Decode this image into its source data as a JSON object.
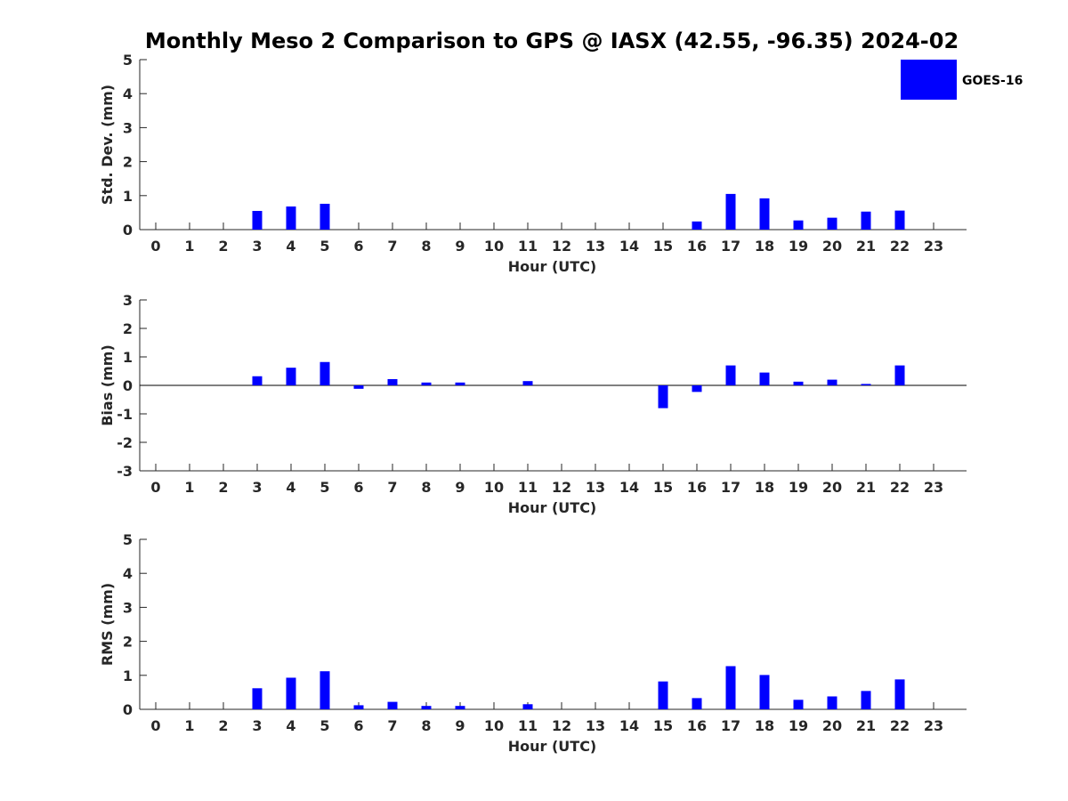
{
  "figure": {
    "title": "Monthly Meso 2 Comparison to GPS @ IASX (42.55, -96.35) 2024-02",
    "legend": {
      "label": "GOES-16",
      "color": "#0000ff",
      "placement": "top-right"
    }
  },
  "chart_data": [
    {
      "type": "bar",
      "xlabel": "Hour (UTC)",
      "ylabel": "Std. Dev. (mm)",
      "ylim": [
        0,
        5
      ],
      "yticks": [
        "0",
        "1",
        "2",
        "3",
        "4",
        "5"
      ],
      "categories": [
        "0",
        "1",
        "2",
        "3",
        "4",
        "5",
        "6",
        "7",
        "8",
        "9",
        "10",
        "11",
        "12",
        "13",
        "14",
        "15",
        "16",
        "17",
        "18",
        "19",
        "20",
        "21",
        "22",
        "23"
      ],
      "series": [
        {
          "name": "GOES-16",
          "color": "#0000ff",
          "values": [
            null,
            null,
            null,
            0.55,
            0.68,
            0.76,
            null,
            null,
            null,
            null,
            null,
            null,
            null,
            null,
            null,
            null,
            0.24,
            1.05,
            0.92,
            0.27,
            0.35,
            0.53,
            0.56,
            null
          ]
        }
      ],
      "zero_line": false
    },
    {
      "type": "bar",
      "xlabel": "Hour (UTC)",
      "ylabel": "Bias (mm)",
      "ylim": [
        -3,
        3
      ],
      "yticks": [
        "-3",
        "-2",
        "-1",
        "0",
        "1",
        "2",
        "3"
      ],
      "categories": [
        "0",
        "1",
        "2",
        "3",
        "4",
        "5",
        "6",
        "7",
        "8",
        "9",
        "10",
        "11",
        "12",
        "13",
        "14",
        "15",
        "16",
        "17",
        "18",
        "19",
        "20",
        "21",
        "22",
        "23"
      ],
      "series": [
        {
          "name": "GOES-16",
          "color": "#0000ff",
          "values": [
            null,
            null,
            null,
            0.32,
            0.62,
            0.82,
            -0.12,
            0.22,
            0.1,
            0.1,
            null,
            0.15,
            null,
            null,
            null,
            -0.8,
            -0.23,
            0.7,
            0.45,
            0.13,
            0.2,
            0.05,
            0.7,
            null
          ]
        }
      ],
      "zero_line": true
    },
    {
      "type": "bar",
      "xlabel": "Hour (UTC)",
      "ylabel": "RMS (mm)",
      "ylim": [
        0,
        5
      ],
      "yticks": [
        "0",
        "1",
        "2",
        "3",
        "4",
        "5"
      ],
      "categories": [
        "0",
        "1",
        "2",
        "3",
        "4",
        "5",
        "6",
        "7",
        "8",
        "9",
        "10",
        "11",
        "12",
        "13",
        "14",
        "15",
        "16",
        "17",
        "18",
        "19",
        "20",
        "21",
        "22",
        "23"
      ],
      "series": [
        {
          "name": "GOES-16",
          "color": "#0000ff",
          "values": [
            null,
            null,
            null,
            0.62,
            0.93,
            1.12,
            0.12,
            0.22,
            0.1,
            0.1,
            null,
            0.15,
            null,
            null,
            null,
            0.82,
            0.33,
            1.27,
            1.01,
            0.28,
            0.38,
            0.54,
            0.88,
            null
          ]
        }
      ],
      "zero_line": false
    }
  ]
}
